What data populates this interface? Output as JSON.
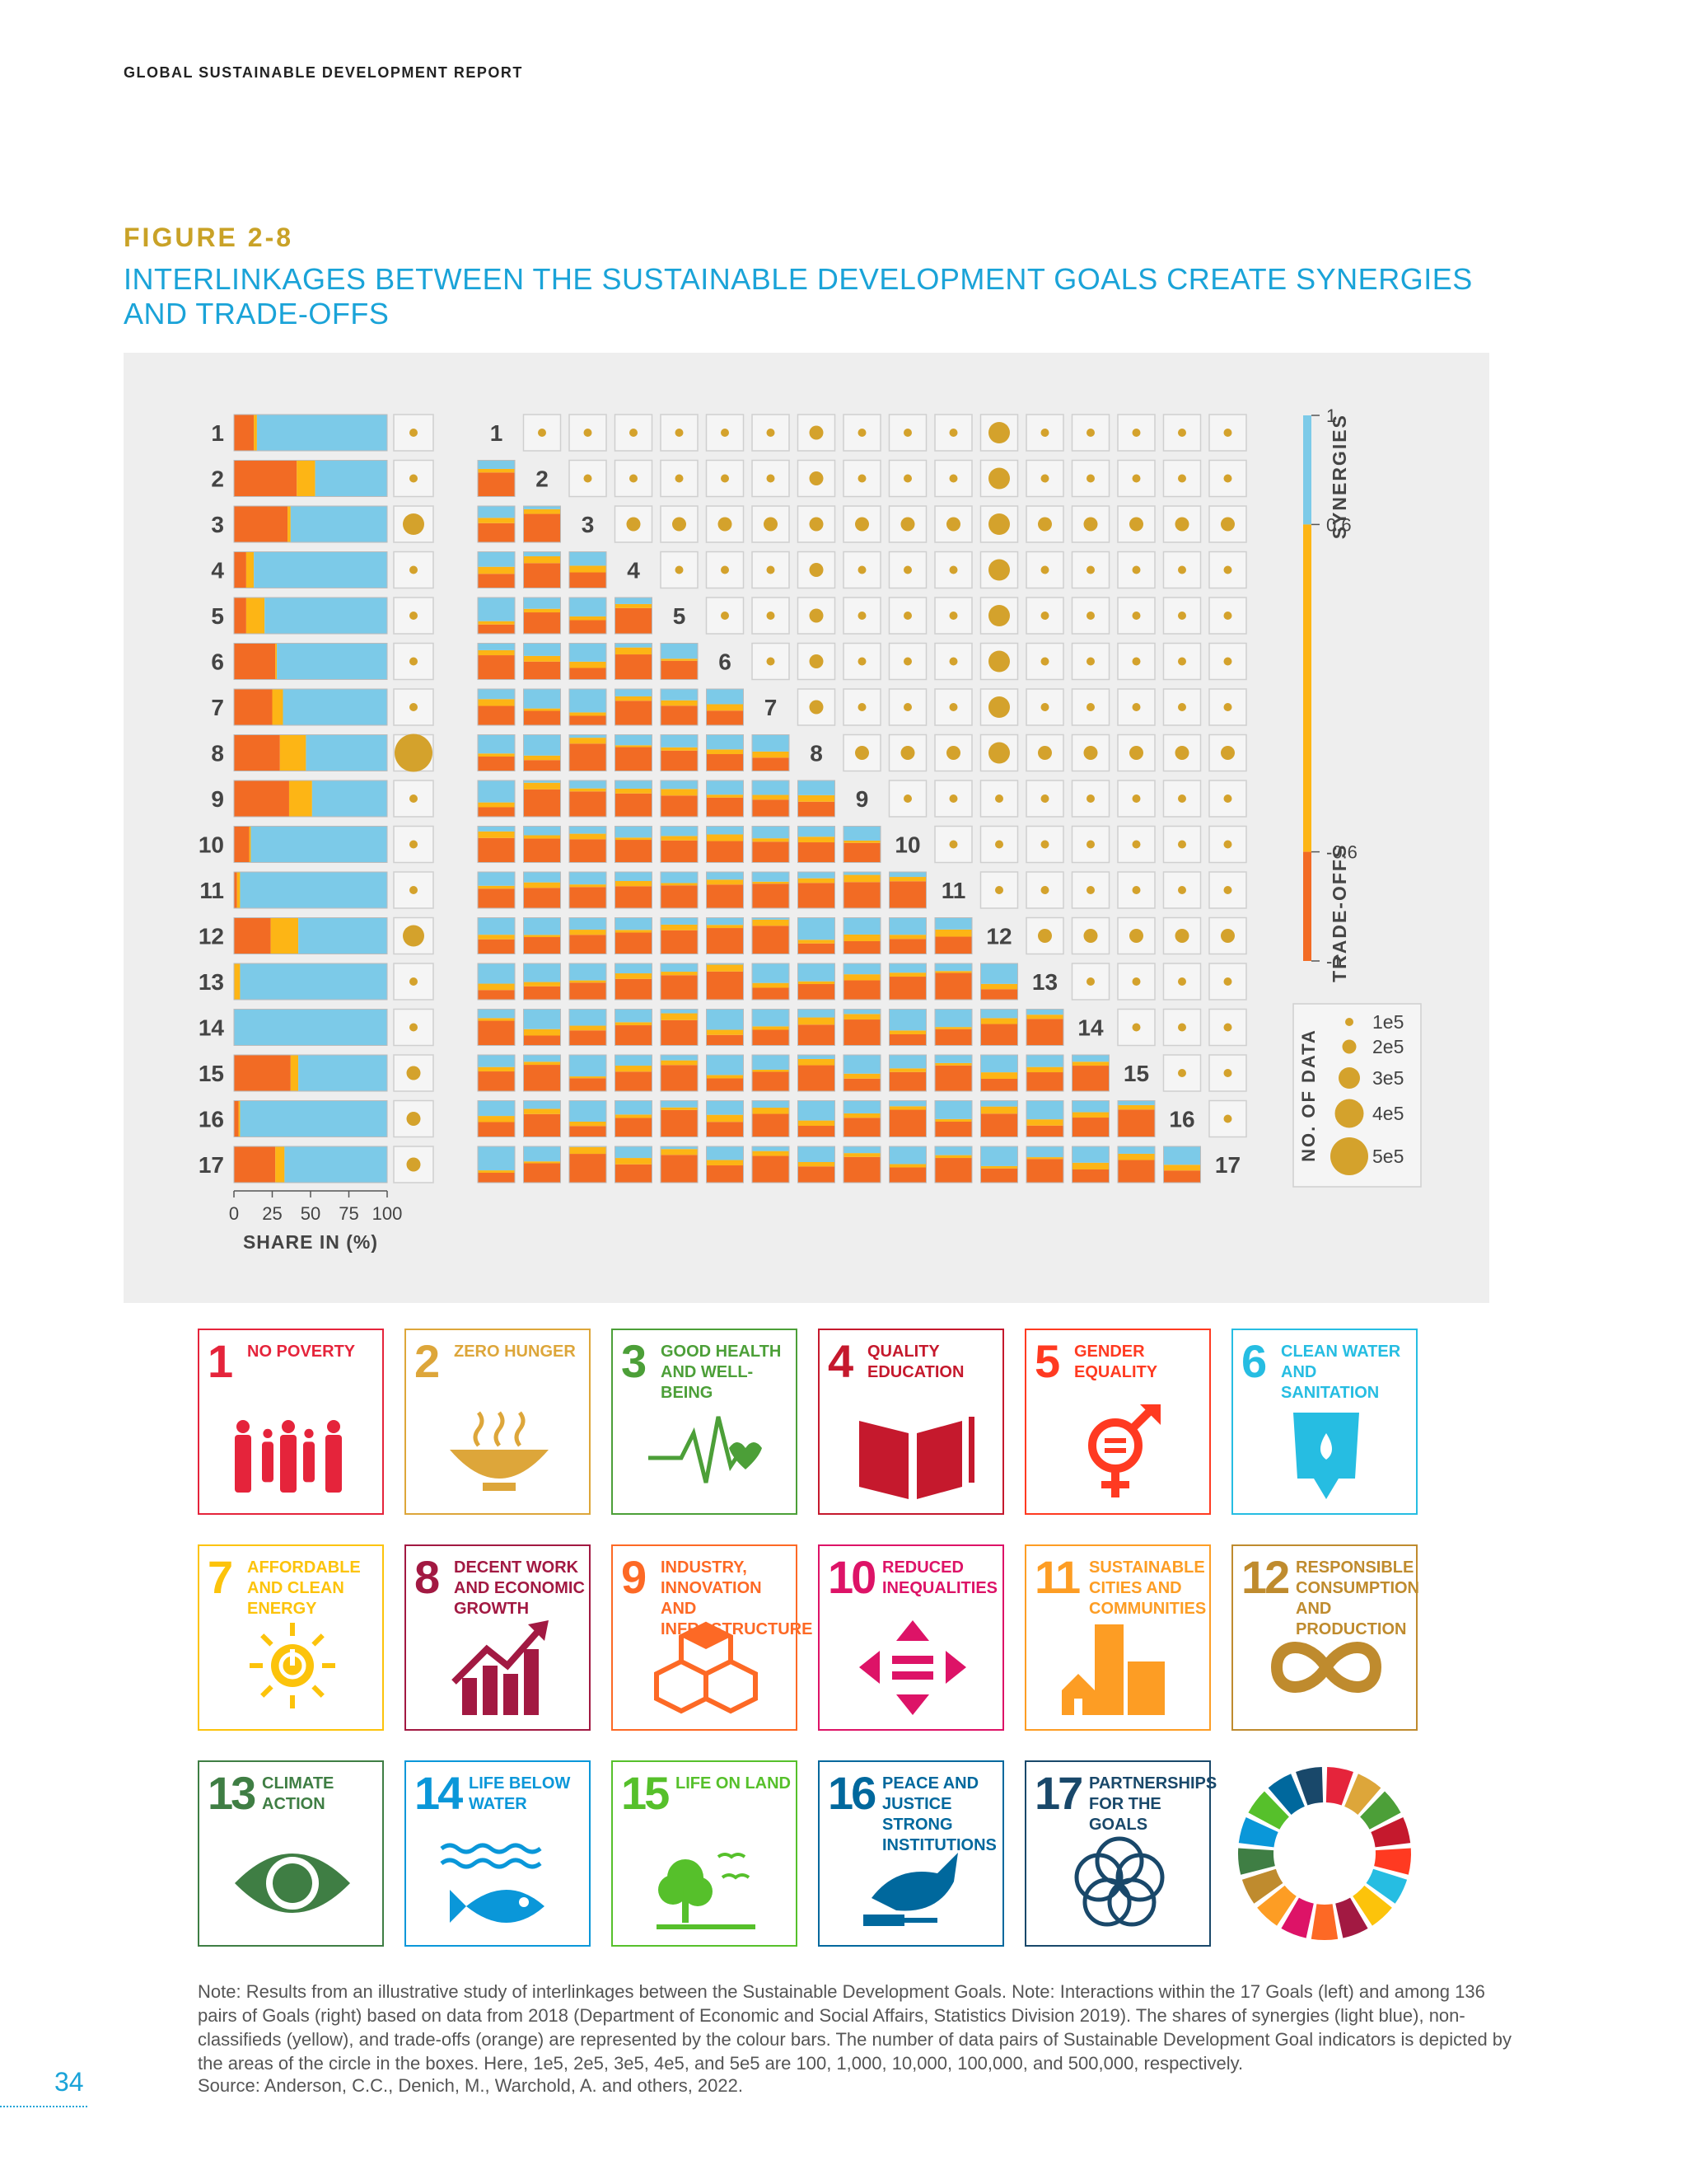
{
  "header": {
    "report": "GLOBAL SUSTAINABLE DEVELOPMENT REPORT"
  },
  "figure": {
    "label": "FIGURE 2-8",
    "title": "INTERLINKAGES BETWEEN THE SUSTAINABLE DEVELOPMENT GOALS CREATE SYNERGIES AND TRADE-OFFS"
  },
  "colors": {
    "synergy": "#7ccae8",
    "nonclassified": "#fdb515",
    "tradeoff": "#f26b24",
    "circle": "#d4a22c",
    "box": "#f5f5f5",
    "panel": "#eeeeee"
  },
  "chart_data": [
    {
      "type": "bar",
      "orientation": "horizontal-stacked",
      "categories": [
        "1",
        "2",
        "3",
        "4",
        "5",
        "6",
        "7",
        "8",
        "9",
        "10",
        "11",
        "12",
        "13",
        "14",
        "15",
        "16",
        "17"
      ],
      "series": [
        {
          "name": "trade-offs",
          "values": [
            13,
            41,
            35,
            8,
            8,
            27,
            25,
            30,
            36,
            10,
            2,
            24,
            0,
            0,
            37,
            3,
            27
          ]
        },
        {
          "name": "non-classified",
          "values": [
            2,
            12,
            2,
            5,
            12,
            1,
            7,
            17,
            15,
            1,
            2,
            18,
            4,
            0,
            5,
            1,
            6
          ]
        },
        {
          "name": "synergies",
          "values": [
            85,
            47,
            63,
            87,
            80,
            72,
            68,
            53,
            49,
            89,
            96,
            58,
            96,
            100,
            58,
            96,
            67
          ]
        }
      ],
      "circle_size": [
        1,
        1,
        3,
        1,
        1,
        1,
        1,
        5,
        1,
        1,
        1,
        3,
        1,
        1,
        2,
        2,
        2
      ],
      "xlabel": "SHARE IN (%)",
      "xticks": [
        "0",
        "25",
        "50",
        "75",
        "100"
      ],
      "xlim": [
        0,
        100
      ]
    },
    {
      "type": "heatmap",
      "description_of_marks": "lower triangle: stacked bars; upper triangle: circles sized by number of data pairs",
      "goals": [
        "1",
        "2",
        "3",
        "4",
        "5",
        "6",
        "7",
        "8",
        "9",
        "10",
        "11",
        "12",
        "13",
        "14",
        "15",
        "16",
        "17"
      ],
      "circle_size_legend": [
        "1e5",
        "2e5",
        "3e5",
        "4e5",
        "5e5"
      ],
      "color_scale": {
        "labels": [
          "1",
          "0.6",
          "-0.6",
          "-1"
        ],
        "synergies_label": "SYNERGIES",
        "tradeoffs_label": "TRADE-OFFS"
      },
      "legend_title": "NO. OF DATA"
    }
  ],
  "sdgs": [
    {
      "n": "1",
      "label": "NO POVERTY",
      "color": "#e5243b",
      "icon": "family-icon"
    },
    {
      "n": "2",
      "label": "ZERO HUNGER",
      "color": "#dda63a",
      "icon": "bowl-icon"
    },
    {
      "n": "3",
      "label": "GOOD HEALTH AND WELL-BEING",
      "color": "#4c9f38",
      "icon": "heartbeat-icon"
    },
    {
      "n": "4",
      "label": "QUALITY EDUCATION",
      "color": "#c5192d",
      "icon": "book-icon"
    },
    {
      "n": "5",
      "label": "GENDER EQUALITY",
      "color": "#ff3a21",
      "icon": "gender-icon"
    },
    {
      "n": "6",
      "label": "CLEAN WATER AND SANITATION",
      "color": "#26bde2",
      "icon": "water-icon"
    },
    {
      "n": "7",
      "label": "AFFORDABLE AND CLEAN ENERGY",
      "color": "#fcc30b",
      "icon": "power-icon"
    },
    {
      "n": "8",
      "label": "DECENT WORK AND ECONOMIC GROWTH",
      "color": "#a21942",
      "icon": "growth-chart-icon"
    },
    {
      "n": "9",
      "label": "INDUSTRY, INNOVATION AND INFRASTRUCTURE",
      "color": "#fd6925",
      "icon": "cubes-icon"
    },
    {
      "n": "10",
      "label": "REDUCED INEQUALITIES",
      "color": "#dd1367",
      "icon": "equal-arrows-icon"
    },
    {
      "n": "11",
      "label": "SUSTAINABLE CITIES AND COMMUNITIES",
      "color": "#fd9d24",
      "icon": "city-icon"
    },
    {
      "n": "12",
      "label": "RESPONSIBLE CONSUMPTION AND PRODUCTION",
      "color": "#bf8b2e",
      "icon": "infinity-icon"
    },
    {
      "n": "13",
      "label": "CLIMATE ACTION",
      "color": "#3f7e44",
      "icon": "eye-globe-icon"
    },
    {
      "n": "14",
      "label": "LIFE BELOW WATER",
      "color": "#0a97d9",
      "icon": "fish-icon"
    },
    {
      "n": "15",
      "label": "LIFE ON LAND",
      "color": "#56c02b",
      "icon": "tree-icon"
    },
    {
      "n": "16",
      "label": "PEACE AND JUSTICE STRONG INSTITUTIONS",
      "color": "#00689d",
      "icon": "dove-icon"
    },
    {
      "n": "17",
      "label": "PARTNERSHIPS FOR THE GOALS",
      "color": "#19486a",
      "icon": "rings-icon"
    }
  ],
  "wheel_colors": [
    "#e5243b",
    "#dda63a",
    "#4c9f38",
    "#c5192d",
    "#ff3a21",
    "#26bde2",
    "#fcc30b",
    "#a21942",
    "#fd6925",
    "#dd1367",
    "#fd9d24",
    "#bf8b2e",
    "#3f7e44",
    "#0a97d9",
    "#56c02b",
    "#00689d",
    "#19486a"
  ],
  "note": "Note: Results from an illustrative study of interlinkages between the Sustainable Development Goals. Note: Interactions within the 17 Goals (left) and among 136 pairs of Goals (right) based on data from 2018 (Department of Economic and Social Affairs, Statistics Division 2019). The shares of synergies (light blue), non-classifieds (yellow), and trade-offs (orange) are represented by the colour bars. The number of data pairs of Sustainable Development Goal indicators is depicted by the areas of the circle in the boxes. Here, 1e5, 2e5, 3e5, 4e5, and 5e5 are 100, 1,000, 10,000, 100,000, and 500,000, respectively.",
  "source": "Source: Anderson, C.C., Denich, M., Warchold, A. and others, 2022.",
  "page_number": "34"
}
